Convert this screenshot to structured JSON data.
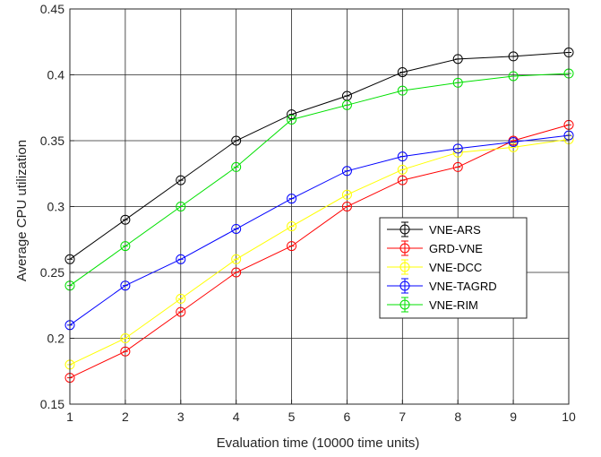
{
  "chart_data": {
    "type": "line",
    "title": "",
    "xlabel": "Evaluation time (10000 time units)",
    "ylabel": "Average CPU utilization",
    "x": [
      1,
      2,
      3,
      4,
      5,
      6,
      7,
      8,
      9,
      10
    ],
    "xlim": [
      1,
      10
    ],
    "ylim": [
      0.15,
      0.45
    ],
    "xticks": [
      "1",
      "2",
      "3",
      "4",
      "5",
      "6",
      "7",
      "8",
      "9",
      "10"
    ],
    "yticks": [
      "0.15",
      "0.2",
      "0.25",
      "0.3",
      "0.35",
      "0.4",
      "0.45"
    ],
    "grid": true,
    "legend_position": "right-center",
    "marker": "circle-with-errorbar",
    "series": [
      {
        "name": "VNE-ARS",
        "color": "#000000",
        "values": [
          0.26,
          0.29,
          0.32,
          0.35,
          0.37,
          0.384,
          0.402,
          0.412,
          0.414,
          0.417
        ]
      },
      {
        "name": "GRD-VNE",
        "color": "#ff0000",
        "values": [
          0.17,
          0.19,
          0.22,
          0.25,
          0.27,
          0.3,
          0.32,
          0.33,
          0.35,
          0.362
        ]
      },
      {
        "name": "VNE-DCC",
        "color": "#ffff00",
        "values": [
          0.18,
          0.2,
          0.23,
          0.26,
          0.285,
          0.309,
          0.328,
          0.341,
          0.345,
          0.351
        ]
      },
      {
        "name": "VNE-TAGRD",
        "color": "#0000ff",
        "values": [
          0.21,
          0.24,
          0.26,
          0.283,
          0.306,
          0.327,
          0.338,
          0.344,
          0.349,
          0.354
        ]
      },
      {
        "name": "VNE-RIM",
        "color": "#00e000",
        "values": [
          0.24,
          0.27,
          0.3,
          0.33,
          0.366,
          0.377,
          0.388,
          0.394,
          0.399,
          0.401
        ]
      }
    ]
  }
}
